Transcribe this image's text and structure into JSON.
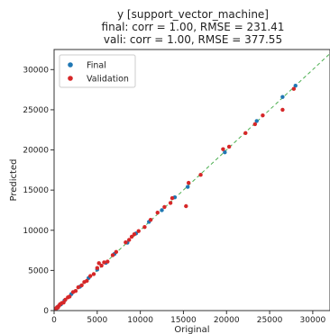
{
  "chart_data": {
    "type": "scatter",
    "title": [
      "y [support_vector_machine]",
      "final: corr = 1.00, RMSE = 231.41",
      "vali: corr = 1.00, RMSE = 377.55"
    ],
    "xlabel": "Original",
    "ylabel": "Predicted",
    "xlim": [
      0,
      32000
    ],
    "ylim": [
      0,
      32500
    ],
    "xticks": [
      0,
      5000,
      10000,
      15000,
      20000,
      25000,
      30000
    ],
    "yticks": [
      0,
      5000,
      10000,
      15000,
      20000,
      25000,
      30000
    ],
    "grid": false,
    "legend_position": "top-left",
    "reference_line": {
      "style": "dashed",
      "color": "#4caf50",
      "from": [
        0,
        0
      ],
      "to": [
        32000,
        32000
      ]
    },
    "series": [
      {
        "name": "Final",
        "color": "#1f77b4",
        "points": [
          [
            100,
            150
          ],
          [
            300,
            280
          ],
          [
            500,
            520
          ],
          [
            800,
            780
          ],
          [
            1200,
            1250
          ],
          [
            2000,
            2050
          ],
          [
            3000,
            2980
          ],
          [
            4000,
            4050
          ],
          [
            5000,
            5100
          ],
          [
            6000,
            5950
          ],
          [
            7000,
            7050
          ],
          [
            8500,
            8450
          ],
          [
            9500,
            9600
          ],
          [
            11000,
            11050
          ],
          [
            12500,
            12500
          ],
          [
            14000,
            14100
          ],
          [
            15500,
            15400
          ],
          [
            19800,
            19700
          ],
          [
            23500,
            23600
          ],
          [
            26500,
            26600
          ],
          [
            28000,
            28000
          ]
        ]
      },
      {
        "name": "Validation",
        "color": "#d62728",
        "points": [
          [
            50,
            80
          ],
          [
            150,
            100
          ],
          [
            250,
            300
          ],
          [
            350,
            420
          ],
          [
            450,
            380
          ],
          [
            600,
            650
          ],
          [
            700,
            800
          ],
          [
            900,
            950
          ],
          [
            1100,
            1000
          ],
          [
            1300,
            1350
          ],
          [
            1600,
            1650
          ],
          [
            1800,
            1750
          ],
          [
            2200,
            2300
          ],
          [
            2500,
            2450
          ],
          [
            2800,
            2900
          ],
          [
            3200,
            3150
          ],
          [
            3500,
            3550
          ],
          [
            3800,
            3700
          ],
          [
            4200,
            4300
          ],
          [
            4600,
            4550
          ],
          [
            5000,
            5300
          ],
          [
            5200,
            5900
          ],
          [
            5500,
            5600
          ],
          [
            5800,
            6000
          ],
          [
            6200,
            6100
          ],
          [
            6800,
            6900
          ],
          [
            7200,
            7300
          ],
          [
            8300,
            8500
          ],
          [
            8700,
            8800
          ],
          [
            9000,
            9200
          ],
          [
            9300,
            9500
          ],
          [
            9800,
            9900
          ],
          [
            10500,
            10400
          ],
          [
            11200,
            11300
          ],
          [
            12000,
            12200
          ],
          [
            12800,
            12900
          ],
          [
            13500,
            13400
          ],
          [
            13700,
            14000
          ],
          [
            15300,
            13000
          ],
          [
            15600,
            15900
          ],
          [
            17000,
            16900
          ],
          [
            19600,
            20100
          ],
          [
            20300,
            20400
          ],
          [
            22200,
            22100
          ],
          [
            23300,
            23200
          ],
          [
            24200,
            24300
          ],
          [
            26500,
            25000
          ],
          [
            27800,
            27600
          ]
        ]
      }
    ]
  }
}
